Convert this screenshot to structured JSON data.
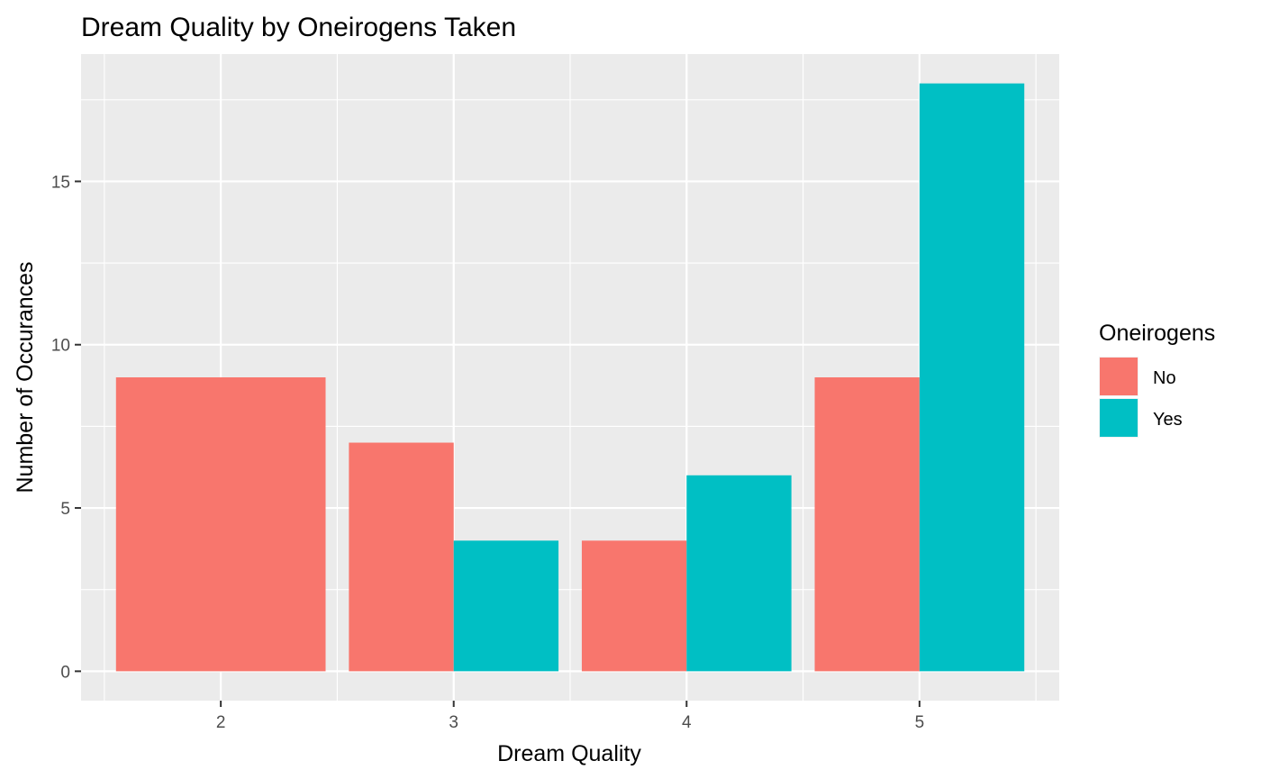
{
  "chart_data": {
    "type": "bar",
    "title": "Dream Quality by Oneirogens Taken",
    "xlabel": "Dream Quality",
    "ylabel": "Number of Occurances",
    "categories": [
      "2",
      "3",
      "4",
      "5"
    ],
    "series": [
      {
        "name": "No",
        "color": "#F8766D",
        "values": [
          9,
          7,
          4,
          9
        ]
      },
      {
        "name": "Yes",
        "color": "#00BFC4",
        "values": [
          null,
          4,
          6,
          18
        ]
      }
    ],
    "y_ticks": [
      0,
      5,
      10,
      15
    ],
    "ylim": [
      -0.9,
      18.9
    ],
    "legend_title": "Oneirogens",
    "legend_position": "right",
    "grid": true,
    "panel_background": "#EBEBEB"
  }
}
